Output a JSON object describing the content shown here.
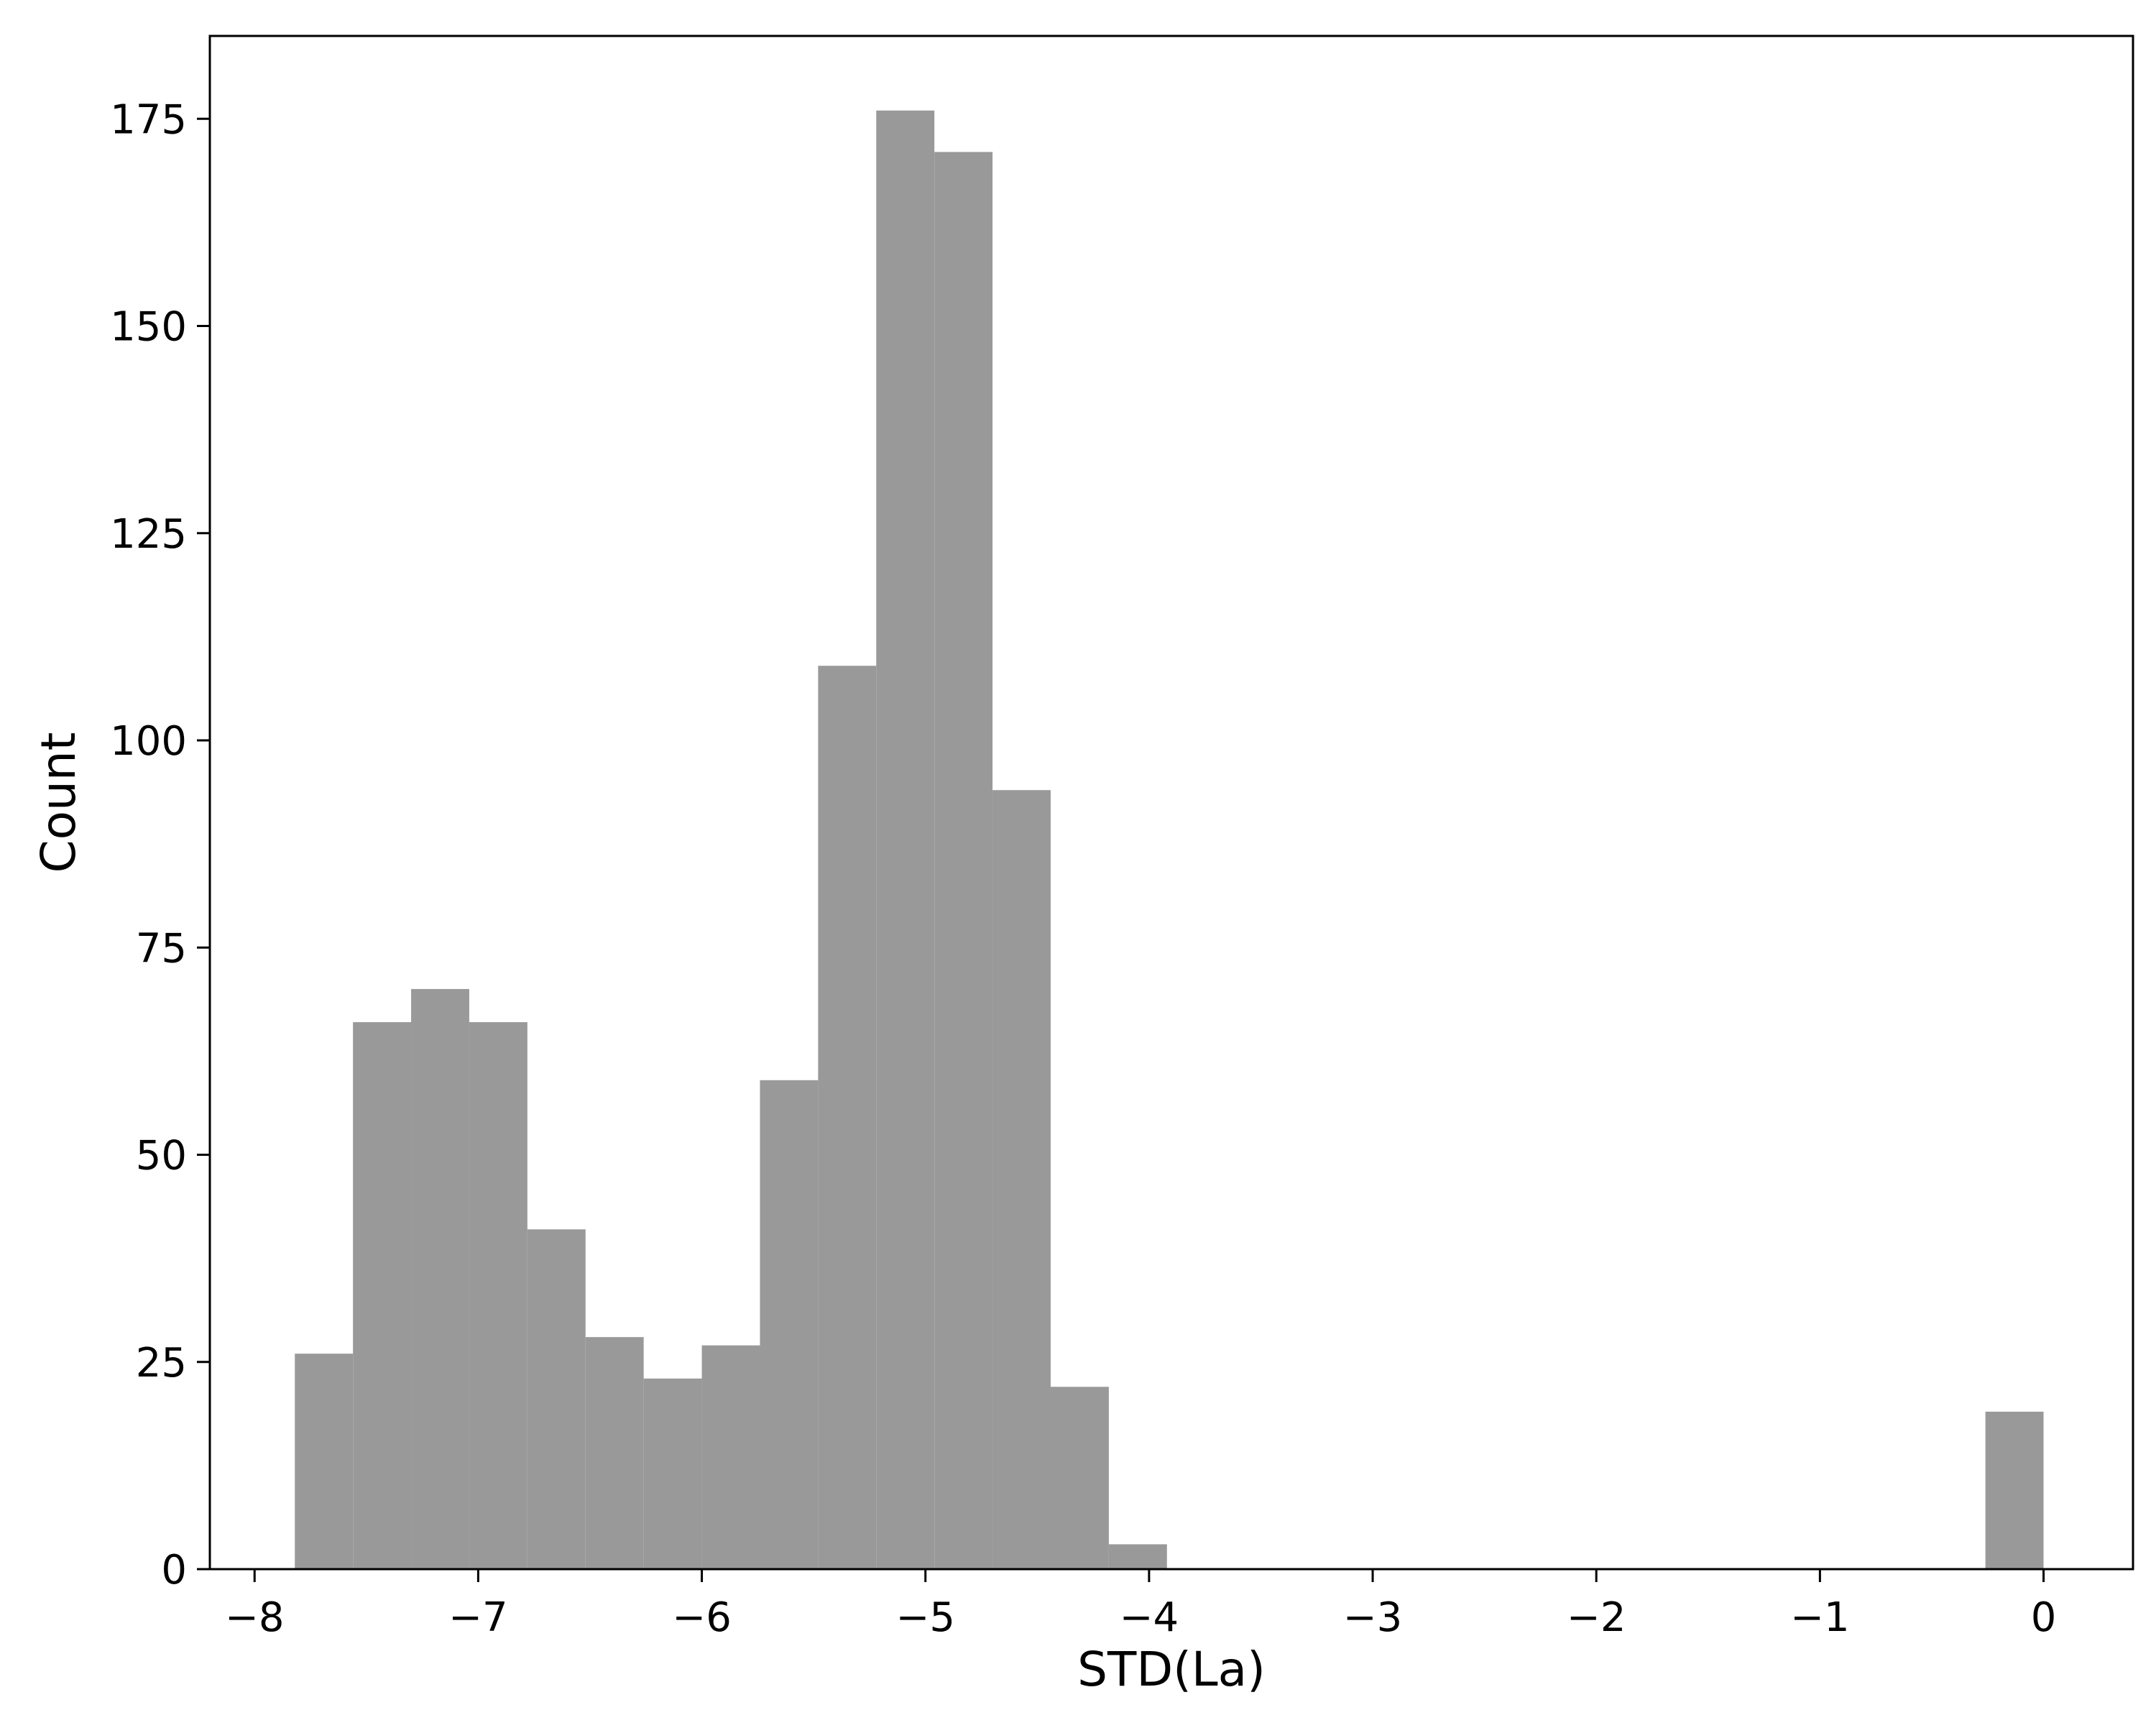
{
  "chart_data": {
    "type": "bar",
    "title": "",
    "xlabel": "STD(La)",
    "ylabel": "Count",
    "xlim": [
      -8.2,
      0.4
    ],
    "ylim": [
      0,
      185
    ],
    "xticks": [
      -8,
      -7,
      -6,
      -5,
      -4,
      -3,
      -2,
      -1,
      0
    ],
    "xtick_labels": [
      "−8",
      "−7",
      "−6",
      "−5",
      "−4",
      "−3",
      "−2",
      "−1",
      "0"
    ],
    "yticks": [
      0,
      25,
      50,
      75,
      100,
      125,
      150,
      175
    ],
    "ytick_labels": [
      "0",
      "25",
      "50",
      "75",
      "100",
      "125",
      "150",
      "175"
    ],
    "grid": false,
    "legend": "none",
    "bar_color": "#999999",
    "bins": [
      {
        "x0": -7.82,
        "x1": -7.56,
        "count": 26
      },
      {
        "x0": -7.56,
        "x1": -7.3,
        "count": 66
      },
      {
        "x0": -7.3,
        "x1": -7.04,
        "count": 70
      },
      {
        "x0": -7.04,
        "x1": -6.78,
        "count": 66
      },
      {
        "x0": -6.78,
        "x1": -6.52,
        "count": 41
      },
      {
        "x0": -6.52,
        "x1": -6.26,
        "count": 28
      },
      {
        "x0": -6.26,
        "x1": -6.0,
        "count": 23
      },
      {
        "x0": -6.0,
        "x1": -5.74,
        "count": 27
      },
      {
        "x0": -5.74,
        "x1": -5.48,
        "count": 59
      },
      {
        "x0": -5.48,
        "x1": -5.22,
        "count": 109
      },
      {
        "x0": -5.22,
        "x1": -4.96,
        "count": 176
      },
      {
        "x0": -4.96,
        "x1": -4.7,
        "count": 171
      },
      {
        "x0": -4.7,
        "x1": -4.44,
        "count": 94
      },
      {
        "x0": -4.44,
        "x1": -4.18,
        "count": 22
      },
      {
        "x0": -4.18,
        "x1": -3.92,
        "count": 3
      },
      {
        "x0": -0.26,
        "x1": 0.0,
        "count": 19
      }
    ]
  }
}
